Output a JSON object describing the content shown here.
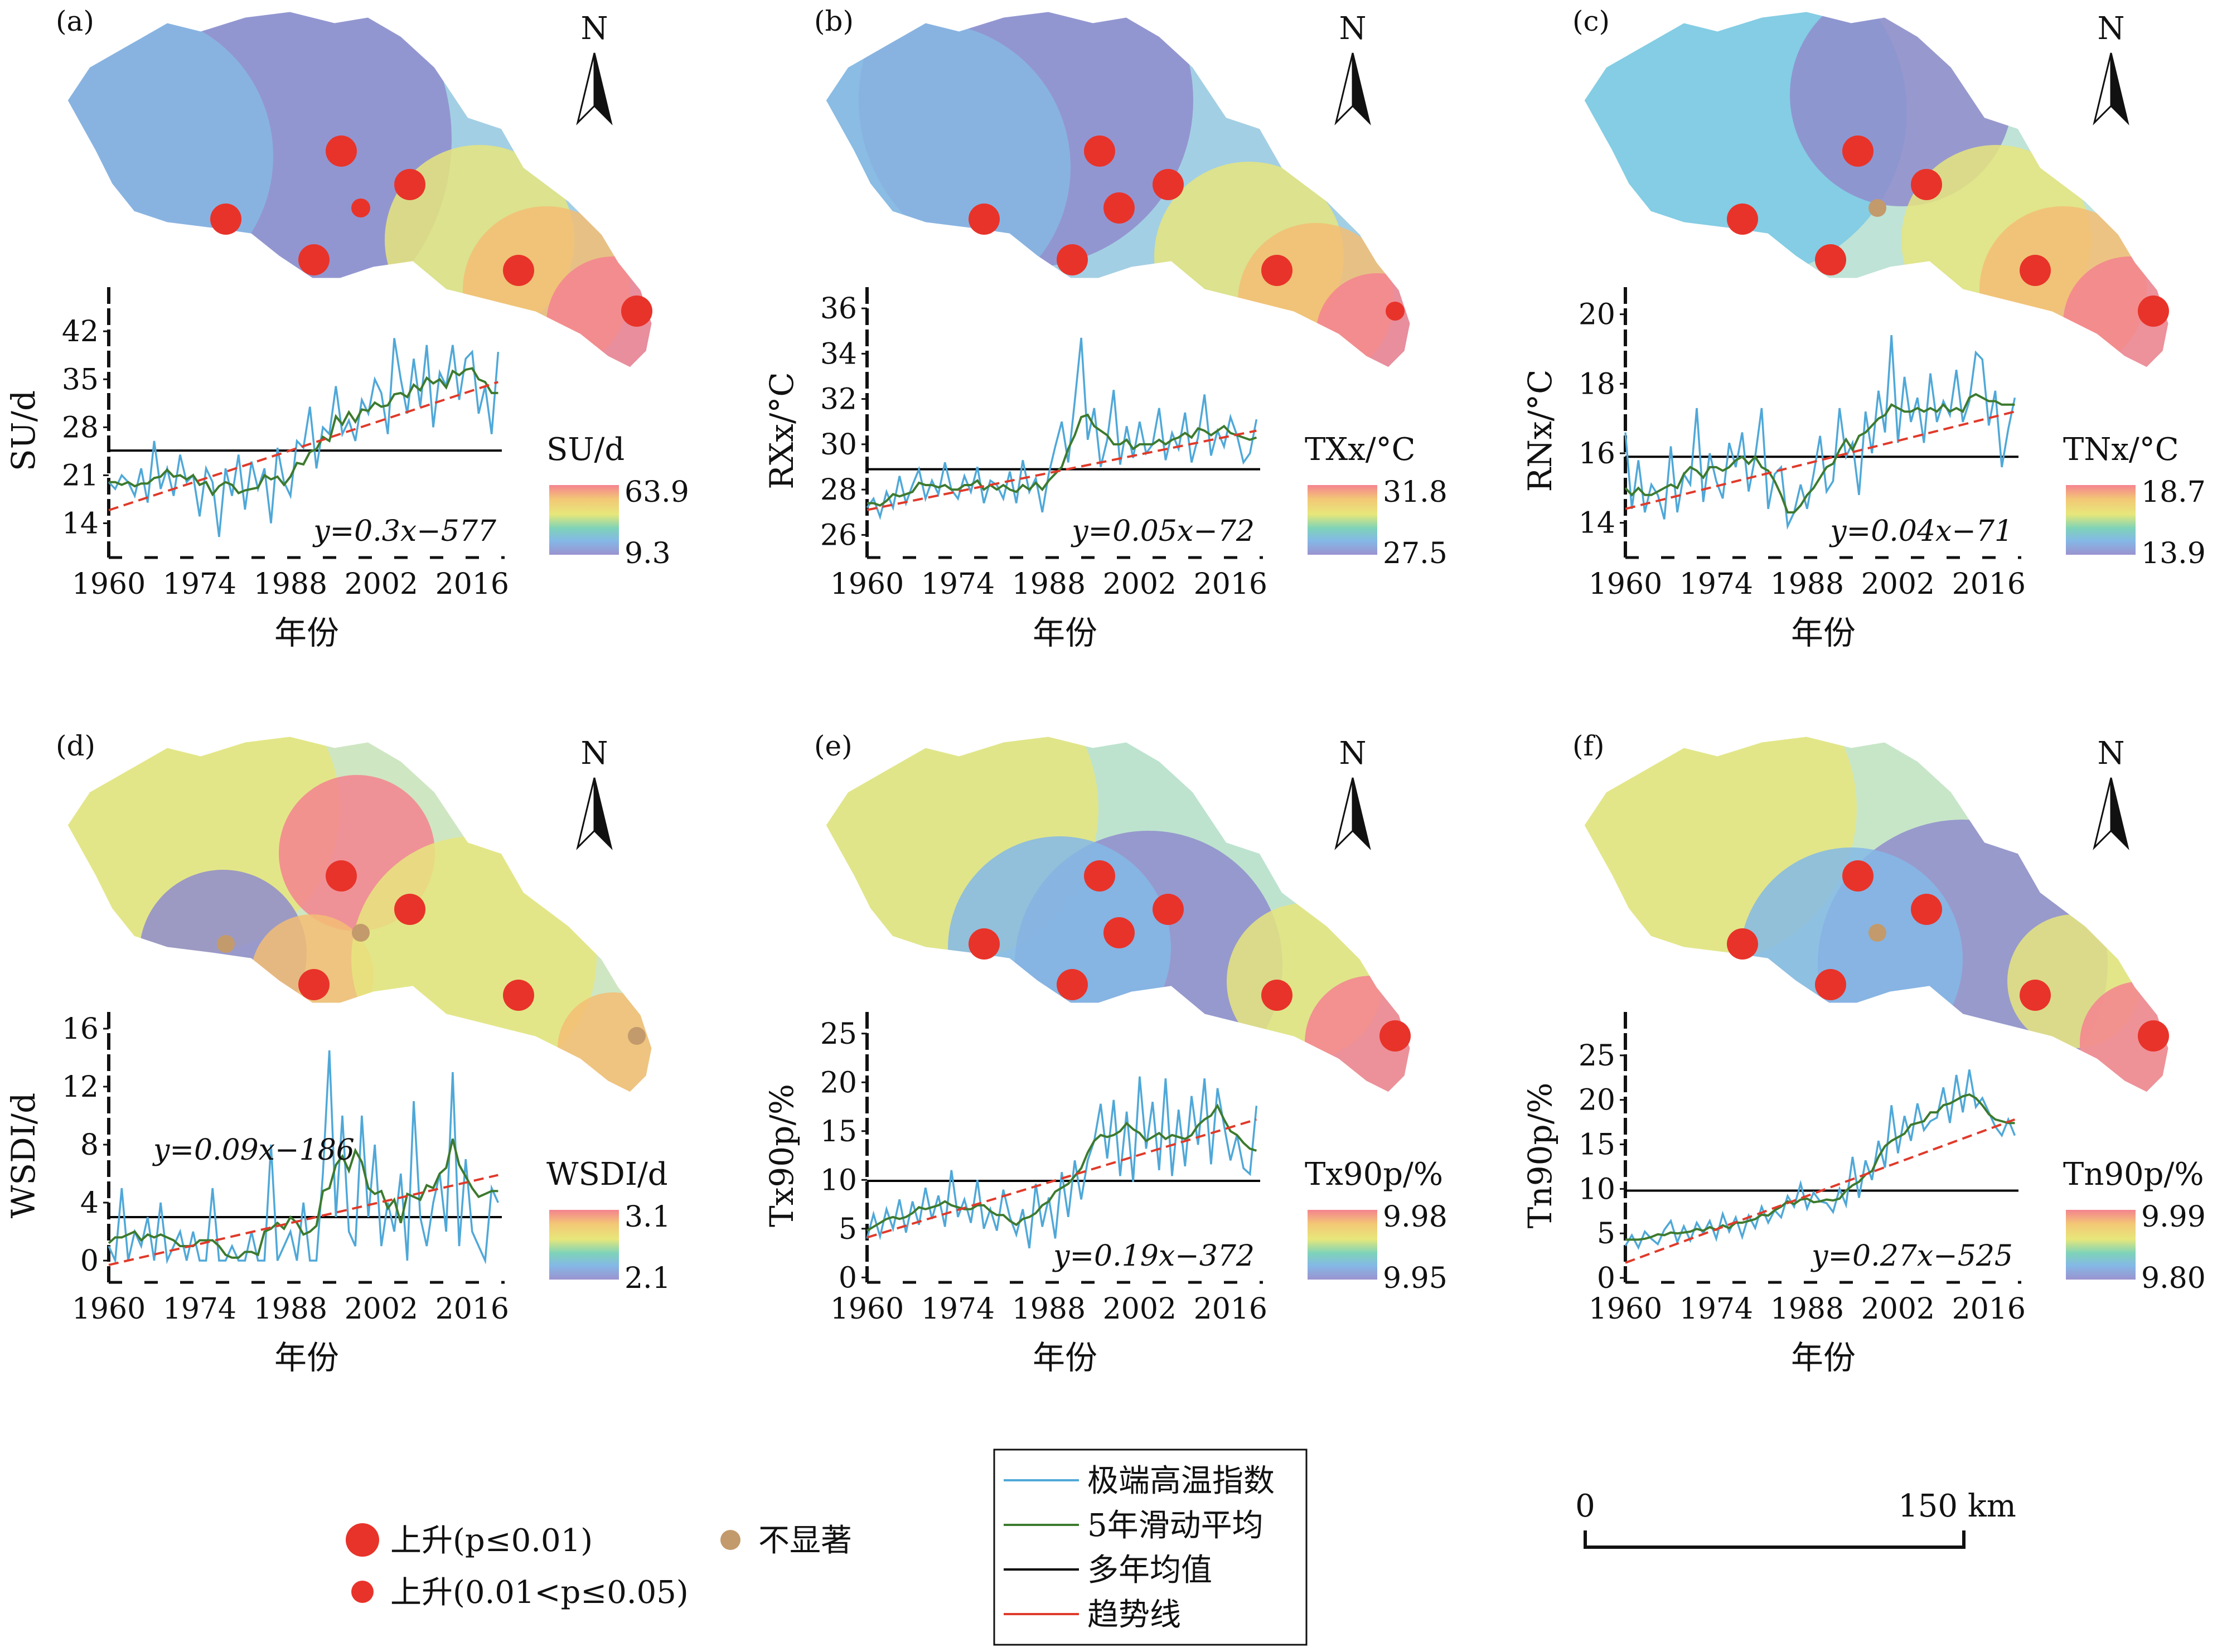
{
  "panels": [
    {
      "id": "(a)",
      "ylabel": "SU/d",
      "yticks": [
        14,
        21,
        28,
        35,
        42
      ],
      "ylim": [
        9,
        46
      ],
      "mean": 24.6,
      "trend_start": 15.9,
      "trend_end": 34.6,
      "formula": "y=0.3x−577",
      "colorbar": {
        "title": "SU/d",
        "max": "63.9",
        "min": "9.3"
      },
      "map": "a",
      "stations": [
        {
          "name": "s1",
          "sig": "p01"
        },
        {
          "name": "s2",
          "sig": "p01"
        },
        {
          "name": "s3",
          "sig": "p05"
        },
        {
          "name": "s4",
          "sig": "p01"
        },
        {
          "name": "s5",
          "sig": "p01"
        },
        {
          "name": "s6",
          "sig": "p01"
        },
        {
          "name": "s7",
          "sig": "p01"
        }
      ],
      "series": [
        20,
        19,
        21,
        20,
        18,
        22,
        17,
        26,
        19,
        22,
        18,
        24,
        20,
        21,
        15,
        22,
        20,
        12,
        22,
        18,
        24,
        16,
        23,
        19,
        22,
        14,
        25,
        20,
        18,
        26,
        25,
        31,
        22,
        28,
        27,
        34,
        27,
        29,
        26,
        32,
        30,
        35,
        33,
        27,
        41,
        35,
        30,
        38,
        31,
        40,
        28,
        36,
        34,
        40,
        32,
        38,
        39,
        30,
        34,
        27,
        39
      ],
      "smooth": [
        20.0,
        20.0,
        19.6,
        20.0,
        19.4,
        19.8,
        19.8,
        20.6,
        20.8,
        21.8,
        20.8,
        21.0,
        20.4,
        21.0,
        19.6,
        20.0,
        18.2,
        19.4,
        20.0,
        19.6,
        18.4,
        18.8,
        19.0,
        19.2,
        21.0,
        20.4,
        20.8,
        19.6,
        20.8,
        22.8,
        22.6,
        24.4,
        24.8,
        26.6,
        26.0,
        29.6,
        28.4,
        30.2,
        28.8,
        30.6,
        30.4,
        31.6,
        31.0,
        31.2,
        32.8,
        33.0,
        32.4,
        34.2,
        33.4,
        35.2,
        34.4,
        35.0,
        33.8,
        36.2,
        35.6,
        36.4,
        36.6,
        35.0,
        34.6,
        33.0,
        33.0
      ]
    },
    {
      "id": "(b)",
      "ylabel": "RXx/°C",
      "yticks": [
        26,
        28,
        30,
        32,
        34,
        36
      ],
      "ylim": [
        25,
        36.2
      ],
      "mean": 28.9,
      "trend_start": 27.1,
      "trend_end": 30.6,
      "formula": "y=0.05x−72",
      "colorbar": {
        "title": "TXx/°C",
        "max": "31.8",
        "min": "27.5"
      },
      "map": "b",
      "stations": [
        {
          "name": "s1",
          "sig": "p01"
        },
        {
          "name": "s2",
          "sig": "p01"
        },
        {
          "name": "s3",
          "sig": "p01"
        },
        {
          "name": "s4",
          "sig": "p01"
        },
        {
          "name": "s5",
          "sig": "p01"
        },
        {
          "name": "s6",
          "sig": "p01"
        },
        {
          "name": "s7",
          "sig": "p05"
        }
      ],
      "series": [
        27.2,
        27.6,
        26.8,
        27.9,
        27.2,
        28.6,
        27.4,
        28.2,
        28.9,
        27.6,
        28.4,
        27.8,
        29.2,
        28.0,
        27.6,
        28.6,
        27.9,
        29.0,
        27.4,
        28.4,
        28.2,
        27.6,
        28.8,
        27.4,
        29.3,
        27.9,
        28.5,
        27.0,
        28.7,
        29.9,
        31.0,
        29.2,
        31.9,
        34.7,
        30.2,
        31.6,
        29.0,
        30.2,
        32.4,
        29.1,
        30.8,
        29.4,
        31.0,
        29.6,
        30.0,
        31.6,
        29.3,
        30.5,
        29.8,
        31.4,
        29.2,
        30.3,
        32.2,
        29.5,
        30.6,
        29.9,
        31.2,
        30.4,
        29.2,
        29.6,
        31.1
      ],
      "smooth": [
        27.4,
        27.4,
        27.3,
        27.5,
        27.8,
        27.7,
        27.8,
        27.9,
        28.3,
        28.2,
        28.2,
        28.1,
        28.2,
        28.0,
        28.0,
        28.2,
        28.2,
        28.4,
        28.0,
        28.2,
        28.0,
        28.2,
        28.0,
        27.9,
        28.2,
        28.0,
        28.3,
        28.0,
        28.4,
        28.7,
        29.0,
        29.8,
        30.4,
        31.2,
        31.3,
        30.8,
        30.6,
        30.4,
        30.0,
        30.0,
        30.2,
        29.8,
        30.0,
        30.0,
        30.0,
        30.2,
        30.0,
        30.2,
        30.3,
        30.5,
        30.3,
        30.7,
        30.6,
        30.4,
        30.6,
        30.8,
        30.5,
        30.4,
        30.3,
        30.2,
        30.3
      ]
    },
    {
      "id": "(c)",
      "ylabel": "RNx/°C",
      "yticks": [
        14,
        16,
        18,
        20
      ],
      "ylim": [
        13,
        20.3
      ],
      "mean": 15.9,
      "trend_start": 14.4,
      "trend_end": 17.2,
      "formula": "y=0.04x−71",
      "colorbar": {
        "title": "TNx/°C",
        "max": "18.7",
        "min": "13.9"
      },
      "map": "c",
      "stations": [
        {
          "name": "s1",
          "sig": "p01"
        },
        {
          "name": "s2",
          "sig": "p01"
        },
        {
          "name": "s3",
          "sig": "ns"
        },
        {
          "name": "s4",
          "sig": "p01"
        },
        {
          "name": "s5",
          "sig": "p01"
        },
        {
          "name": "s6",
          "sig": "p01"
        },
        {
          "name": "s7",
          "sig": "p01"
        }
      ],
      "series": [
        16.6,
        14.4,
        15.8,
        14.3,
        15.1,
        14.8,
        14.1,
        16.2,
        14.3,
        15.4,
        15.1,
        17.3,
        14.6,
        16.0,
        15.2,
        14.7,
        16.3,
        15.6,
        16.6,
        14.9,
        15.9,
        17.3,
        14.4,
        15.4,
        15.6,
        13.9,
        14.3,
        15.1,
        14.4,
        15.4,
        16.5,
        14.9,
        15.2,
        17.3,
        15.9,
        16.3,
        14.8,
        17.2,
        16.0,
        17.8,
        16.6,
        19.4,
        16.3,
        18.2,
        16.9,
        17.6,
        16.3,
        18.3,
        16.9,
        17.5,
        17.1,
        18.4,
        16.9,
        17.5,
        18.9,
        18.7,
        16.8,
        17.8,
        15.6,
        16.7,
        17.6
      ],
      "smooth": [
        15.0,
        14.8,
        15.0,
        14.8,
        14.8,
        14.9,
        15.0,
        15.1,
        15.0,
        15.4,
        15.6,
        15.5,
        15.3,
        15.6,
        15.6,
        15.5,
        15.6,
        15.8,
        15.9,
        15.7,
        15.9,
        15.6,
        15.5,
        15.2,
        14.8,
        14.3,
        14.3,
        14.5,
        14.8,
        15.0,
        15.3,
        15.6,
        15.7,
        16.1,
        16.4,
        16.1,
        16.5,
        16.6,
        16.8,
        17.0,
        17.1,
        17.4,
        17.3,
        17.2,
        17.2,
        17.3,
        17.2,
        17.3,
        17.2,
        17.4,
        17.2,
        17.3,
        17.2,
        17.6,
        17.7,
        17.6,
        17.5,
        17.5,
        17.4,
        17.4,
        17.4
      ]
    },
    {
      "id": "(d)",
      "ylabel": "WSDI/d",
      "yticks": [
        0,
        4,
        8,
        12,
        16
      ],
      "ylim": [
        -1.5,
        16
      ],
      "mean": 3.0,
      "trend_start": -0.3,
      "trend_end": 5.9,
      "formula": "y=0.09x−186",
      "colorbar": {
        "title": "WSDI/d",
        "max": "3.1",
        "min": "2.1"
      },
      "map": "d",
      "stations": [
        {
          "name": "s1",
          "sig": "ns"
        },
        {
          "name": "s2",
          "sig": "p01"
        },
        {
          "name": "s3",
          "sig": "ns"
        },
        {
          "name": "s4",
          "sig": "p01"
        },
        {
          "name": "s5",
          "sig": "p01"
        },
        {
          "name": "s6",
          "sig": "p01"
        },
        {
          "name": "s7",
          "sig": "ns"
        }
      ],
      "series": [
        1.0,
        0.0,
        5.0,
        0.0,
        2.0,
        1.0,
        3.0,
        0.0,
        4.0,
        0.0,
        1.0,
        2.0,
        0.0,
        2.0,
        0.0,
        0.0,
        5.0,
        0.0,
        0.0,
        1.0,
        0.0,
        0.0,
        2.0,
        0.0,
        0.0,
        8.0,
        0.0,
        1.0,
        2.0,
        0.0,
        4.0,
        0.0,
        0.0,
        6.0,
        14.5,
        3.0,
        10.0,
        2.0,
        1.0,
        10.0,
        3.0,
        8.0,
        1.0,
        4.0,
        2.0,
        6.0,
        0.0,
        11.0,
        3.0,
        1.0,
        4.0,
        6.0,
        2.0,
        13.0,
        1.0,
        7.0,
        2.0,
        1.0,
        0.0,
        5.0,
        4.0
      ],
      "smooth": [
        1.2,
        1.6,
        1.6,
        1.8,
        2.0,
        1.4,
        1.8,
        1.6,
        1.8,
        1.6,
        1.4,
        1.0,
        1.0,
        1.0,
        1.4,
        1.4,
        1.4,
        1.0,
        0.4,
        0.2,
        0.2,
        0.6,
        0.6,
        0.4,
        2.0,
        2.2,
        2.6,
        2.2,
        3.0,
        2.6,
        1.8,
        2.0,
        2.4,
        4.8,
        5.0,
        6.6,
        7.2,
        6.2,
        7.6,
        6.8,
        5.0,
        4.6,
        4.8,
        3.6,
        4.2,
        2.6,
        4.6,
        4.4,
        4.2,
        5.2,
        5.0,
        6.0,
        6.4,
        8.4,
        6.6,
        5.8,
        5.0,
        4.4,
        4.6,
        4.8,
        4.8
      ]
    },
    {
      "id": "(e)",
      "ylabel": "Tx90p/%",
      "yticks": [
        0,
        5,
        10,
        15,
        20,
        25
      ],
      "ylim": [
        -0.5,
        25.5
      ],
      "mean": 9.9,
      "trend_start": 4.1,
      "trend_end": 16.2,
      "formula": "y=0.19x−372",
      "colorbar": {
        "title": "Tx90p/%",
        "max": "9.98",
        "min": "9.95"
      },
      "map": "e",
      "stations": [
        {
          "name": "s1",
          "sig": "p01"
        },
        {
          "name": "s2",
          "sig": "p01"
        },
        {
          "name": "s3",
          "sig": "p01"
        },
        {
          "name": "s4",
          "sig": "p01"
        },
        {
          "name": "s5",
          "sig": "p01"
        },
        {
          "name": "s6",
          "sig": "p01"
        },
        {
          "name": "s7",
          "sig": "p01"
        }
      ],
      "series": [
        4.0,
        6.5,
        4.2,
        7.0,
        5.0,
        8.0,
        4.6,
        7.8,
        5.4,
        9.2,
        6.0,
        8.4,
        5.2,
        11.0,
        6.2,
        8.0,
        5.6,
        10.0,
        5.0,
        7.0,
        4.8,
        9.0,
        6.2,
        4.4,
        7.0,
        3.0,
        9.6,
        5.2,
        8.2,
        4.0,
        10.8,
        6.2,
        12.0,
        8.0,
        12.0,
        14.0,
        17.8,
        12.2,
        18.2,
        10.4,
        17.0,
        9.8,
        20.6,
        13.2,
        18.0,
        11.0,
        20.4,
        10.4,
        17.2,
        11.4,
        18.6,
        13.6,
        20.4,
        11.6,
        19.4,
        15.6,
        12.0,
        14.6,
        11.2,
        10.6,
        17.6
      ],
      "smooth": [
        4.8,
        5.2,
        5.6,
        6.0,
        6.2,
        6.0,
        6.2,
        6.6,
        7.2,
        7.0,
        7.2,
        7.4,
        7.8,
        7.4,
        7.2,
        7.0,
        7.0,
        7.4,
        7.4,
        6.8,
        6.4,
        6.4,
        5.8,
        5.4,
        6.0,
        6.2,
        6.6,
        7.4,
        7.8,
        8.8,
        9.2,
        9.6,
        10.4,
        11.2,
        12.8,
        14.0,
        14.6,
        14.4,
        14.6,
        15.0,
        15.8,
        15.2,
        14.8,
        14.0,
        14.4,
        14.8,
        14.2,
        14.6,
        14.4,
        14.2,
        14.6,
        15.6,
        16.2,
        16.6,
        17.6,
        16.2,
        15.0,
        14.6,
        13.8,
        13.2,
        13.0
      ]
    },
    {
      "id": "(f)",
      "ylabel": "Tn90p/%",
      "yticks": [
        0,
        5,
        10,
        15,
        20,
        25
      ],
      "ylim": [
        -0.5,
        28
      ],
      "mean": 9.8,
      "trend_start": 1.7,
      "trend_end": 17.8,
      "formula": "y=0.27x−525",
      "colorbar": {
        "title": "Tn90p/%",
        "max": "9.99",
        "min": "9.80"
      },
      "map": "f",
      "stations": [
        {
          "name": "s1",
          "sig": "p01"
        },
        {
          "name": "s2",
          "sig": "p01"
        },
        {
          "name": "s3",
          "sig": "ns"
        },
        {
          "name": "s4",
          "sig": "p01"
        },
        {
          "name": "s5",
          "sig": "p01"
        },
        {
          "name": "s6",
          "sig": "p01"
        },
        {
          "name": "s7",
          "sig": "p01"
        }
      ],
      "series": [
        3.6,
        4.8,
        3.4,
        5.2,
        4.4,
        3.8,
        5.4,
        6.4,
        4.0,
        5.8,
        4.2,
        6.2,
        5.0,
        6.4,
        4.4,
        7.2,
        5.2,
        6.8,
        4.6,
        7.0,
        5.6,
        8.0,
        6.2,
        7.6,
        6.8,
        9.2,
        8.0,
        10.6,
        7.8,
        9.6,
        8.6,
        8.4,
        7.4,
        10.0,
        8.2,
        13.6,
        9.0,
        13.2,
        11.0,
        15.4,
        12.4,
        19.4,
        14.0,
        18.2,
        15.4,
        19.6,
        16.6,
        17.6,
        18.0,
        21.4,
        17.4,
        22.8,
        18.6,
        23.4,
        19.2,
        20.2,
        18.6,
        17.0,
        16.0,
        17.8,
        16.0
      ],
      "smooth": [
        4.3,
        4.3,
        4.3,
        4.4,
        4.6,
        4.9,
        4.8,
        5.1,
        5.0,
        5.1,
        5.2,
        5.5,
        5.3,
        5.7,
        5.4,
        5.9,
        5.6,
        6.2,
        6.2,
        6.4,
        6.6,
        7.1,
        7.0,
        7.6,
        8.0,
        8.6,
        8.3,
        8.8,
        8.9,
        8.5,
        8.6,
        8.8,
        8.7,
        8.9,
        9.8,
        10.4,
        10.8,
        11.6,
        12.0,
        13.6,
        14.8,
        15.4,
        15.8,
        16.2,
        17.2,
        17.4,
        17.6,
        18.6,
        18.6,
        19.4,
        19.6,
        20.0,
        20.4,
        20.6,
        20.2,
        19.4,
        18.4,
        17.8,
        17.6,
        17.4,
        17.4
      ]
    }
  ],
  "xticks": [
    "1960",
    "1974",
    "1988",
    "2002",
    "2016"
  ],
  "xlabel": "年份",
  "north": "N",
  "legend_sig": [
    {
      "key": "p01",
      "label": "上升(p≤0.01)"
    },
    {
      "key": "p05",
      "label": "上升(0.01<p≤0.05)"
    },
    {
      "key": "ns",
      "label": "不显著"
    }
  ],
  "legend_lines": [
    {
      "key": "index",
      "label": "极端高温指数",
      "color": "#4fa8d8"
    },
    {
      "key": "smooth",
      "label": "5年滑动平均",
      "color": "#3d7a2e"
    },
    {
      "key": "mean",
      "label": "多年均值",
      "color": "#000000"
    },
    {
      "key": "trend",
      "label": "趋势线",
      "color": "#e03a2a"
    }
  ],
  "scalebar": {
    "start": "0",
    "end": "150 km"
  },
  "colors": {
    "sig_p01": "#e8332a",
    "sig_p05": "#e8332a",
    "sig_ns": "#c39a6b"
  },
  "chart_data": [
    {
      "type": "line",
      "title": "(a)",
      "ylabel": "SU/d",
      "xlabel": "年份",
      "x_range": [
        1960,
        2020
      ],
      "series": [
        {
          "name": "极端高温指数"
        },
        {
          "name": "5年滑动平均"
        },
        {
          "name": "多年均值"
        },
        {
          "name": "趋势线"
        }
      ]
    },
    {
      "type": "line",
      "title": "(b)",
      "ylabel": "RXx/°C",
      "xlabel": "年份",
      "x_range": [
        1960,
        2020
      ],
      "series": [
        {
          "name": "极端高温指数"
        },
        {
          "name": "5年滑动平均"
        },
        {
          "name": "多年均值"
        },
        {
          "name": "趋势线"
        }
      ]
    },
    {
      "type": "line",
      "title": "(c)",
      "ylabel": "RNx/°C",
      "xlabel": "年份",
      "x_range": [
        1960,
        2020
      ],
      "series": [
        {
          "name": "极端高温指数"
        },
        {
          "name": "5年滑动平均"
        },
        {
          "name": "多年均值"
        },
        {
          "name": "趋势线"
        }
      ]
    },
    {
      "type": "line",
      "title": "(d)",
      "ylabel": "WSDI/d",
      "xlabel": "年份",
      "x_range": [
        1960,
        2020
      ],
      "series": [
        {
          "name": "极端高温指数"
        },
        {
          "name": "5年滑动平均"
        },
        {
          "name": "多年均值"
        },
        {
          "name": "趋势线"
        }
      ]
    },
    {
      "type": "line",
      "title": "(e)",
      "ylabel": "Tx90p/%",
      "xlabel": "年份",
      "x_range": [
        1960,
        2020
      ],
      "series": [
        {
          "name": "极端高温指数"
        },
        {
          "name": "5年滑动平均"
        },
        {
          "name": "多年均值"
        },
        {
          "name": "趋势线"
        }
      ]
    },
    {
      "type": "line",
      "title": "(f)",
      "ylabel": "Tn90p/%",
      "xlabel": "年份",
      "x_range": [
        1960,
        2020
      ],
      "series": [
        {
          "name": "极端高温指数"
        },
        {
          "name": "5年滑动平均"
        },
        {
          "name": "多年均值"
        },
        {
          "name": "趋势线"
        }
      ]
    }
  ]
}
